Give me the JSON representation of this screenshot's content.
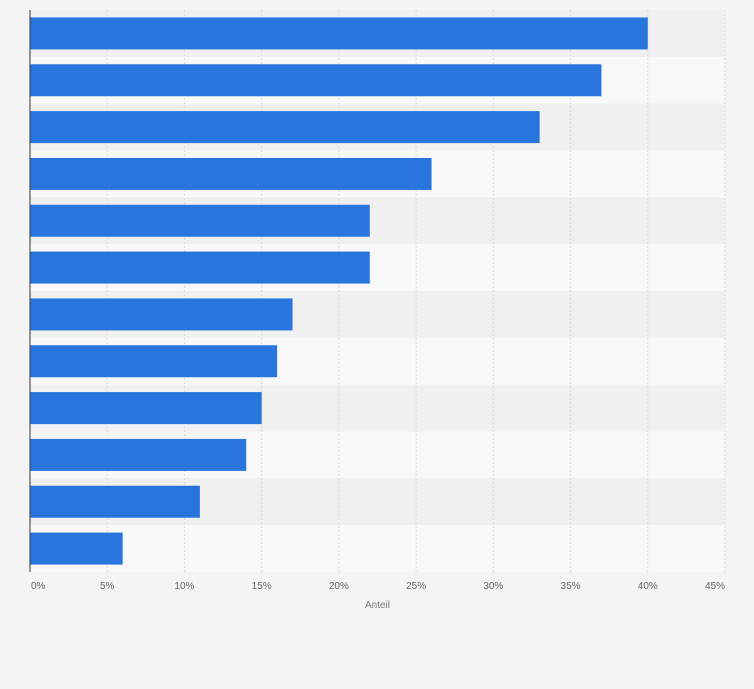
{
  "chart_data": {
    "type": "bar",
    "orientation": "horizontal",
    "values": [
      40,
      37,
      33,
      26,
      22,
      22,
      17,
      16,
      15,
      14,
      11,
      6
    ],
    "xlabel": "Anteil",
    "xlim": [
      0,
      45
    ],
    "ticks": [
      0,
      5,
      10,
      15,
      20,
      25,
      30,
      35,
      40,
      45
    ],
    "tick_labels": [
      "0%",
      "5%",
      "10%",
      "15%",
      "20%",
      "25%",
      "30%",
      "35%",
      "40%",
      "45%"
    ],
    "grid": true,
    "colors": {
      "bar": "#2876dd",
      "band_dark": "#f0f0f1",
      "band_light": "#f8f8f9",
      "grid": "#dcdcdc",
      "axis": "#333333"
    }
  }
}
